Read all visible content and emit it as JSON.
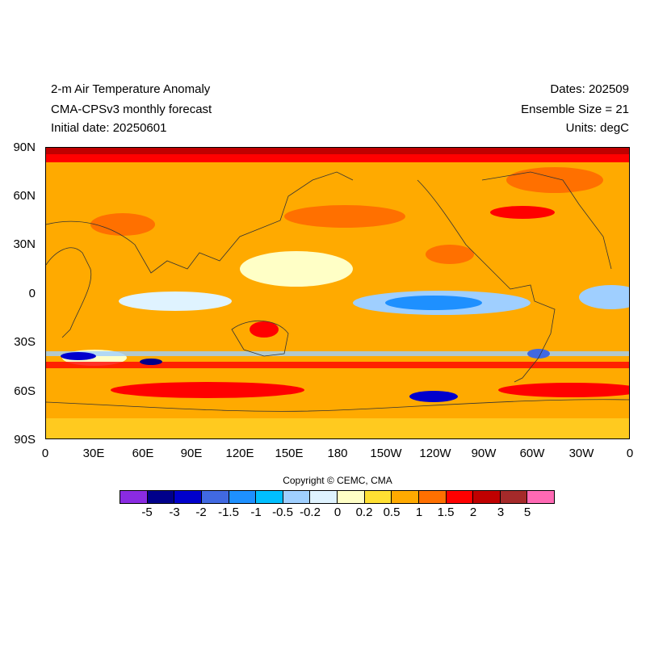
{
  "header": {
    "title": "2-m Air Temperature Anomaly",
    "subtitle": "CMA-CPSv3 monthly forecast",
    "initial_date": "Initial date: 20250601",
    "dates": "Dates: 202509",
    "ensemble": "Ensemble Size = 21",
    "units": "Units: degC"
  },
  "axes": {
    "lat_labels": [
      "90N",
      "60N",
      "30N",
      "0",
      "30S",
      "60S",
      "90S"
    ],
    "lon_labels": [
      "0",
      "30E",
      "60E",
      "90E",
      "120E",
      "150E",
      "180",
      "150W",
      "120W",
      "90W",
      "60W",
      "30W",
      "0"
    ]
  },
  "copyright": "Copyright © CEMC, CMA",
  "colorbar": {
    "colors": [
      "#8a2be2",
      "#00008b",
      "#0000cd",
      "#4169e1",
      "#1e90ff",
      "#00bfff",
      "#9fcfff",
      "#dff3ff",
      "#ffffc6",
      "#ffe033",
      "#ffaa00",
      "#ff7000",
      "#ff0000",
      "#c00000",
      "#a52a2a",
      "#ff69b4"
    ],
    "labels": [
      "-5",
      "-3",
      "-2",
      "-1.5",
      "-1",
      "-0.5",
      "-0.2",
      "0",
      "0.2",
      "0.5",
      "1",
      "1.5",
      "2",
      "3",
      "5"
    ]
  },
  "map": {
    "background_color": "#ffaa00",
    "coastline_color": "#333333"
  }
}
